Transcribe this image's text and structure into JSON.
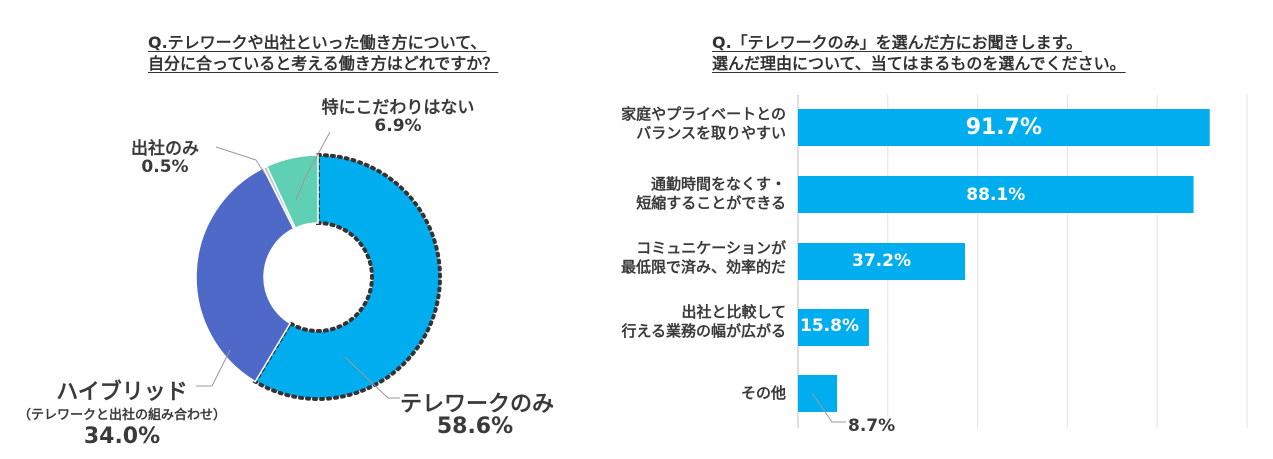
{
  "left": {
    "question_line1": "Q.テレワークや出社といった働き方について、",
    "question_line2": "自分に合っていると考える働き方はどれですか？",
    "chart_data": {
      "type": "pie",
      "title": "Q.テレワークや出社といった働き方について、自分に合っていると考える働き方はどれですか？",
      "slices": [
        {
          "label": "テレワークのみ",
          "value": 58.6,
          "value_label": "58.6%",
          "color": "#00aeef"
        },
        {
          "label": "ハイブリッド",
          "sublabel": "（テレワークと出社の組み合わせ）",
          "value": 34.0,
          "value_label": "34.0%",
          "color": "#4e69c8"
        },
        {
          "label": "出社のみ",
          "value": 0.5,
          "value_label": "0.5%",
          "color": "#c8c8c8"
        },
        {
          "label": "特にこだわりはない",
          "value": 6.9,
          "value_label": "6.9%",
          "color": "#5fd0b4"
        }
      ]
    }
  },
  "right": {
    "question_line1": "Q.「テレワークのみ」を選んだ方にお聞きします。",
    "question_line2": "選んだ理由について、当てはまるものを選んでください。",
    "chart_data": {
      "type": "bar",
      "orientation": "horizontal",
      "title": "Q.「テレワークのみ」を選んだ方にお聞きします。選んだ理由について、当てはまるものを選んでください。",
      "categories": [
        {
          "line1": "家庭やプライベートとの",
          "line2": "バランスを取りやすい"
        },
        {
          "line1": "通勤時間をなくす・",
          "line2": "短縮することができる"
        },
        {
          "line1": "コミュニケーションが",
          "line2": "最低限で済み、効率的だ"
        },
        {
          "line1": "出社と比較して",
          "line2": "行える業務の幅が広がる"
        },
        {
          "line1": "その他",
          "line2": ""
        }
      ],
      "values": [
        91.7,
        88.1,
        37.2,
        15.8,
        8.7
      ],
      "value_labels": [
        "91.7%",
        "88.1%",
        "37.2%",
        "15.8%",
        "8.7%"
      ],
      "xlim": [
        0,
        100
      ],
      "grid": true,
      "bar_color": "#00aeef"
    }
  }
}
